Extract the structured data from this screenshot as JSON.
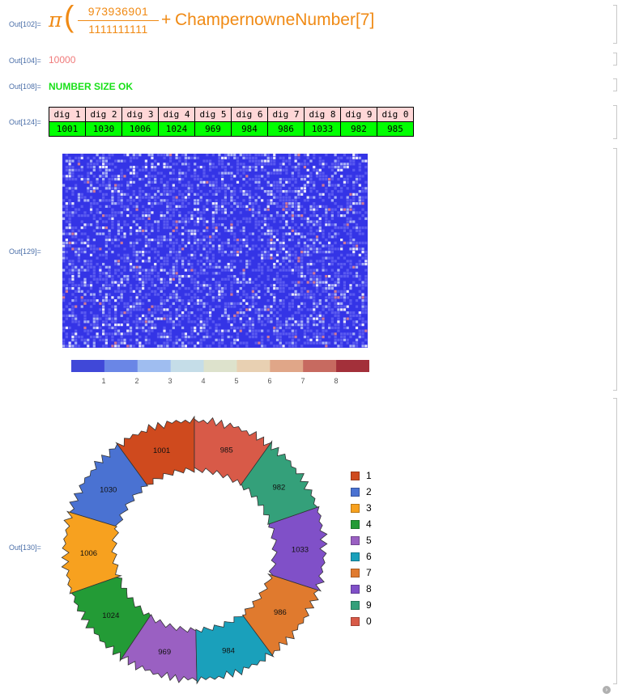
{
  "cells": {
    "out102": {
      "label": "Out[102]=",
      "pi": "π",
      "numerator": "973936901",
      "denominator": "1111111111",
      "plus": "+",
      "function": "ChampernowneNumber[7]"
    },
    "out104": {
      "label": "Out[104]=",
      "value": "10000"
    },
    "out108": {
      "label": "Out[108]=",
      "value": "NUMBER SIZE OK"
    },
    "out124": {
      "label": "Out[124]=",
      "headers": [
        "dig 1",
        "dig 2",
        "dig 3",
        "dig 4",
        "dig 5",
        "dig 6",
        "dig 7",
        "dig 8",
        "dig 9",
        "dig 0"
      ],
      "values": [
        "1001",
        "1030",
        "1006",
        "1024",
        "969",
        "984",
        "986",
        "1033",
        "982",
        "985"
      ]
    },
    "out129": {
      "label": "Out[129]=",
      "legend_ticks": [
        "1",
        "2",
        "3",
        "4",
        "5",
        "6",
        "7",
        "8"
      ],
      "legend_colors": [
        "#4048d8",
        "#6a86e6",
        "#9fbdf0",
        "#c5dde8",
        "#dde2cc",
        "#e8d0b2",
        "#e0a688",
        "#c76a60",
        "#a3303a"
      ]
    },
    "out130": {
      "label": "Out[130]="
    }
  },
  "chart_data": {
    "type": "pie",
    "style": "donut",
    "categories": [
      "1",
      "2",
      "3",
      "4",
      "5",
      "6",
      "7",
      "8",
      "9",
      "0"
    ],
    "values": [
      1001,
      1030,
      1006,
      1024,
      969,
      984,
      986,
      1033,
      982,
      985
    ],
    "slice_labels": [
      "1001",
      "1030",
      "1006",
      "1024",
      "969",
      "984",
      "986",
      "1033",
      "982",
      "985"
    ],
    "colors": [
      "#cf4a1e",
      "#4a72d2",
      "#f7a11f",
      "#239b36",
      "#9a60c2",
      "#1aa0bb",
      "#e07a2e",
      "#8050c8",
      "#34a07a",
      "#d85a48"
    ],
    "legend_placement": "right"
  }
}
